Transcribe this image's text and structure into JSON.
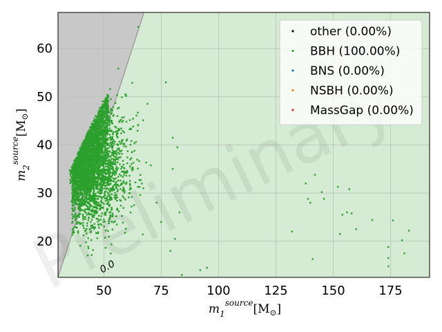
{
  "chart_data": {
    "type": "scatter",
    "xlabel_base": "m",
    "xlabel_sub": "1",
    "xlabel_sup": "source",
    "xlabel_unit": "[M",
    "xlabel_unit_sub": "⊙",
    "xlabel_close": "]",
    "ylabel_base": "m",
    "ylabel_sub": "2",
    "ylabel_sup": "source",
    "ylabel_unit": "[M",
    "ylabel_unit_sub": "⊙",
    "ylabel_close": "]",
    "xlim": [
      30,
      192
    ],
    "ylim": [
      12.5,
      67.5
    ],
    "xticks": [
      50,
      75,
      100,
      125,
      150,
      175
    ],
    "yticks": [
      20,
      30,
      40,
      50,
      60
    ],
    "grid": true,
    "watermark": "Preliminary",
    "contour_label": "0.0",
    "legend_position": "top-right",
    "legend": [
      {
        "label": "other (0.00%)",
        "color": "#000000"
      },
      {
        "label": "BBH (100.00%)",
        "color": "#2ca02c"
      },
      {
        "label": "BNS (0.00%)",
        "color": "#1f77b4"
      },
      {
        "label": "NSBH (0.00%)",
        "color": "#ff7f0e"
      },
      {
        "label": "MassGap (0.00%)",
        "color": "#d62728"
      }
    ],
    "colors": {
      "background": "#d5ebd3",
      "excluded_region": "#c8c8c8",
      "points": "#2ca02c",
      "grid": "#b3c2b1"
    },
    "series": [
      {
        "name": "BBH (100.00%)",
        "outliers": [
          [
            65,
            64.5
          ],
          [
            77,
            53
          ],
          [
            80,
            41.5
          ],
          [
            82,
            39.5
          ],
          [
            80,
            35
          ],
          [
            83,
            26
          ],
          [
            81,
            20.5
          ],
          [
            79,
            18
          ],
          [
            84,
            13
          ],
          [
            92,
            14
          ],
          [
            95,
            14.5
          ],
          [
            73,
            28
          ],
          [
            75,
            24
          ],
          [
            132,
            22
          ],
          [
            138,
            32
          ],
          [
            139,
            28.8
          ],
          [
            140,
            28
          ],
          [
            141,
            16.3
          ],
          [
            142,
            33.8
          ],
          [
            145,
            30.2
          ],
          [
            146,
            28.8
          ],
          [
            152,
            31.3
          ],
          [
            153,
            21.5
          ],
          [
            154,
            25.5
          ],
          [
            156,
            26
          ],
          [
            157,
            30.8
          ],
          [
            158,
            25.8
          ],
          [
            160,
            22.5
          ],
          [
            167,
            24.4
          ],
          [
            174,
            18.8
          ],
          [
            174,
            16.5
          ],
          [
            174,
            14.8
          ],
          [
            176,
            24.3
          ],
          [
            180,
            20.2
          ],
          [
            181,
            17.5
          ],
          [
            183,
            22.2
          ]
        ]
      }
    ]
  }
}
